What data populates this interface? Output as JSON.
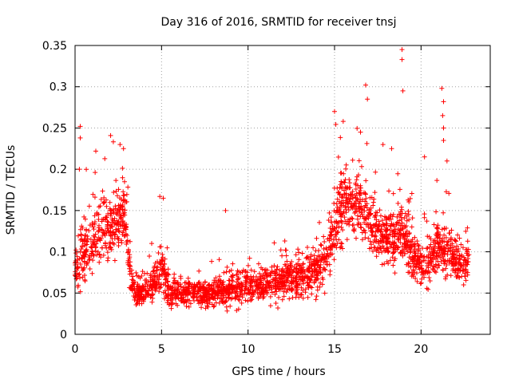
{
  "chart_data": {
    "type": "scatter",
    "title": "Day 316 of 2016, SRMTID for receiver tnsj",
    "xlabel": "GPS time / hours",
    "ylabel": "SRMTID / TECUs",
    "xlim": [
      0,
      24
    ],
    "ylim": [
      0,
      0.35
    ],
    "x_ticks": [
      0,
      5,
      10,
      15,
      20
    ],
    "x_tick_labels": [
      "0",
      "5",
      "10",
      "15",
      "20"
    ],
    "y_ticks": [
      0,
      0.05,
      0.1,
      0.15,
      0.2,
      0.25,
      0.3,
      0.35
    ],
    "y_tick_labels": [
      "0",
      "0.05",
      "0.1",
      "0.15",
      "0.2",
      "0.25",
      "0.3",
      "0.35"
    ],
    "grid": true,
    "marker": "+",
    "color": "#ff0000",
    "envelope": {
      "hours": [
        0,
        0.5,
        1,
        1.5,
        2,
        2.5,
        2.9,
        3.2,
        3.5,
        4,
        4.5,
        5,
        5.5,
        6,
        7,
        8,
        9,
        10,
        11,
        12,
        13,
        14,
        14.5,
        15,
        15.5,
        16,
        16.5,
        17,
        17.5,
        18,
        18.5,
        19,
        19.5,
        20,
        20.5,
        21,
        21.5,
        22,
        22.5,
        22.8
      ],
      "typical": [
        0.08,
        0.1,
        0.11,
        0.12,
        0.13,
        0.14,
        0.15,
        0.07,
        0.05,
        0.05,
        0.06,
        0.08,
        0.05,
        0.05,
        0.05,
        0.05,
        0.055,
        0.06,
        0.06,
        0.065,
        0.07,
        0.08,
        0.09,
        0.13,
        0.16,
        0.16,
        0.15,
        0.14,
        0.12,
        0.12,
        0.12,
        0.12,
        0.1,
        0.08,
        0.09,
        0.11,
        0.1,
        0.09,
        0.08,
        0.1
      ],
      "spread": [
        0.04,
        0.05,
        0.05,
        0.05,
        0.05,
        0.05,
        0.04,
        0.03,
        0.02,
        0.02,
        0.025,
        0.035,
        0.02,
        0.02,
        0.02,
        0.02,
        0.025,
        0.025,
        0.025,
        0.03,
        0.03,
        0.035,
        0.04,
        0.06,
        0.06,
        0.055,
        0.05,
        0.05,
        0.04,
        0.04,
        0.045,
        0.045,
        0.04,
        0.035,
        0.035,
        0.04,
        0.04,
        0.035,
        0.03,
        0.03
      ]
    },
    "highlighted_points": [
      {
        "x": 0.3,
        "y": 0.252
      },
      {
        "x": 0.3,
        "y": 0.238
      },
      {
        "x": 0.25,
        "y": 0.2
      },
      {
        "x": 1.2,
        "y": 0.222
      },
      {
        "x": 2.6,
        "y": 0.23
      },
      {
        "x": 2.8,
        "y": 0.225
      },
      {
        "x": 4.9,
        "y": 0.167
      },
      {
        "x": 5.1,
        "y": 0.165
      },
      {
        "x": 8.7,
        "y": 0.15
      },
      {
        "x": 15.0,
        "y": 0.27
      },
      {
        "x": 15.5,
        "y": 0.258
      },
      {
        "x": 16.5,
        "y": 0.245
      },
      {
        "x": 16.8,
        "y": 0.302
      },
      {
        "x": 16.9,
        "y": 0.285
      },
      {
        "x": 18.9,
        "y": 0.345
      },
      {
        "x": 18.9,
        "y": 0.333
      },
      {
        "x": 18.95,
        "y": 0.295
      },
      {
        "x": 21.2,
        "y": 0.298
      },
      {
        "x": 21.3,
        "y": 0.282
      },
      {
        "x": 21.25,
        "y": 0.265
      },
      {
        "x": 21.3,
        "y": 0.25
      },
      {
        "x": 21.3,
        "y": 0.235
      },
      {
        "x": 21.5,
        "y": 0.21
      },
      {
        "x": 17.8,
        "y": 0.23
      },
      {
        "x": 18.3,
        "y": 0.225
      },
      {
        "x": 20.2,
        "y": 0.215
      }
    ]
  }
}
